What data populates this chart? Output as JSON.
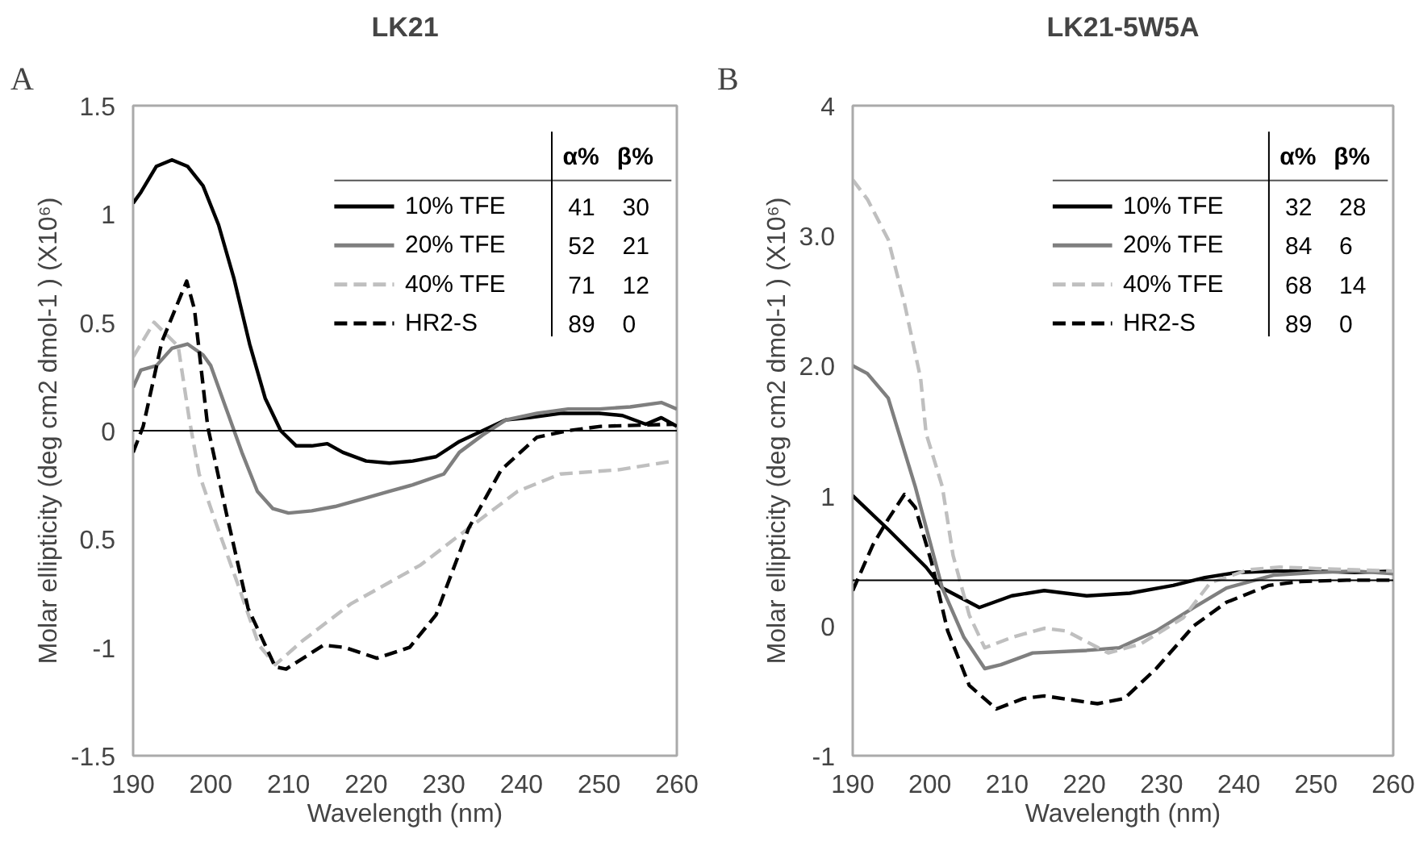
{
  "chart_data": [
    {
      "type": "line",
      "title": "LK21",
      "xlabel": "Wavelength (nm)",
      "ylabel": "Molar ellipticity (deg cm2 dmol-1 ) (X10⁶)",
      "legend": "top right",
      "xlim": [
        190,
        260
      ],
      "xticks": [
        190,
        200,
        210,
        220,
        230,
        240,
        250,
        260
      ],
      "ylim": [
        -1.5,
        1.5
      ],
      "yticks": [
        {
          "value": 1.5,
          "label": "1.5"
        },
        {
          "value": 1,
          "label": "1"
        },
        {
          "value": 0.5,
          "label": "0.5"
        },
        {
          "value": 0,
          "label": "0"
        },
        {
          "value": -0.5,
          "label": "0.5"
        },
        {
          "value": -1,
          "label": "-1"
        },
        {
          "value": -1.5,
          "label": "-1.5"
        }
      ],
      "ref_lines": [
        {
          "axis": "y",
          "value": 0,
          "color": "#000000"
        }
      ],
      "annotations": [
        "A",
        "α%",
        "β%",
        "41",
        "30",
        "52",
        "21",
        "71",
        "12",
        "89",
        "0"
      ],
      "series": [
        {
          "name": "10% TFE",
          "color": "#000000",
          "line_style": "solid",
          "x": [
            190,
            191,
            193,
            195,
            197,
            199,
            201,
            203,
            205,
            207,
            209,
            211,
            213,
            215,
            217,
            220,
            223,
            226,
            229,
            232,
            235,
            238,
            241,
            245,
            250,
            253,
            256,
            258,
            260
          ],
          "values": [
            1.05,
            1.1,
            1.22,
            1.25,
            1.22,
            1.13,
            0.95,
            0.7,
            0.4,
            0.15,
            0.0,
            -0.07,
            -0.07,
            -0.06,
            -0.1,
            -0.14,
            -0.15,
            -0.14,
            -0.12,
            -0.05,
            0.0,
            0.05,
            0.06,
            0.08,
            0.08,
            0.07,
            0.03,
            0.06,
            0.02
          ]
        },
        {
          "name": "20% TFE",
          "color": "#7f7f7f",
          "line_style": "solid",
          "x": [
            190,
            191,
            193,
            195,
            197,
            199,
            200,
            202,
            204,
            206,
            208,
            210,
            213,
            216,
            220,
            223,
            226,
            230,
            232,
            235,
            238,
            242,
            246,
            250,
            254,
            258,
            260
          ],
          "values": [
            0.2,
            0.28,
            0.3,
            0.38,
            0.4,
            0.35,
            0.3,
            0.1,
            -0.1,
            -0.28,
            -0.36,
            -0.38,
            -0.37,
            -0.35,
            -0.31,
            -0.28,
            -0.25,
            -0.2,
            -0.1,
            -0.02,
            0.05,
            0.08,
            0.1,
            0.1,
            0.11,
            0.13,
            0.1
          ]
        },
        {
          "name": "40% TFE",
          "color": "#bfbfbf",
          "line_style": "dashed",
          "x": [
            190,
            192.7,
            195.8,
            197.2,
            198.5,
            200.6,
            203.4,
            206.2,
            208.3,
            211.8,
            218,
            227,
            233.2,
            239.5,
            245,
            252.6,
            259.6
          ],
          "values": [
            0.34,
            0.5,
            0.39,
            0.06,
            -0.2,
            -0.42,
            -0.7,
            -0.99,
            -1.08,
            -0.97,
            -0.8,
            -0.62,
            -0.45,
            -0.28,
            -0.2,
            -0.18,
            -0.14
          ]
        },
        {
          "name": "HR2-S",
          "color": "#000000",
          "line_style": "dashed",
          "x": [
            190,
            191.3,
            193.7,
            196.9,
            197.9,
            199.6,
            202,
            204.8,
            208.3,
            209.7,
            214.5,
            217.2,
            221.4,
            225.6,
            229,
            233.2,
            237.4,
            242,
            246,
            250.2,
            259.6
          ],
          "values": [
            -0.1,
            0.02,
            0.41,
            0.69,
            0.56,
            0.02,
            -0.38,
            -0.82,
            -1.09,
            -1.1,
            -0.99,
            -1.0,
            -1.05,
            -1.0,
            -0.85,
            -0.45,
            -0.18,
            -0.03,
            0.0,
            0.02,
            0.03
          ]
        }
      ]
    },
    {
      "type": "line",
      "title": "LK21-5W5A",
      "xlabel": "Wavelength (nm)",
      "ylabel": "Molar ellipticity (deg cm2 dmol-1 ) (X10⁶)",
      "legend": "top right",
      "xlim": [
        190,
        260
      ],
      "xticks": [
        190,
        200,
        210,
        220,
        230,
        240,
        250,
        260
      ],
      "ylim": [
        -1,
        4
      ],
      "yticks": [
        {
          "value": 4,
          "label": "4"
        },
        {
          "value": 3,
          "label": "3.0"
        },
        {
          "value": 2,
          "label": "2.0"
        },
        {
          "value": 1,
          "label": "1"
        },
        {
          "value": 0,
          "label": "0"
        },
        {
          "value": -1,
          "label": "-1"
        }
      ],
      "ref_lines": [
        {
          "axis": "y",
          "value": 0.35,
          "color": "#000000"
        }
      ],
      "annotations": [
        "B",
        "α%",
        "β%",
        "32",
        "28",
        "84",
        "6",
        "68",
        "14",
        "89",
        "0"
      ],
      "series": [
        {
          "name": "10% TFE",
          "color": "#000000",
          "line_style": "solid",
          "x": [
            190,
            194.6,
            199.5,
            201.6,
            206.4,
            210.6,
            214.8,
            220.3,
            225.9,
            231.5,
            235.6,
            239.8,
            245,
            250,
            255,
            260
          ],
          "values": [
            1.0,
            0.74,
            0.45,
            0.29,
            0.14,
            0.23,
            0.27,
            0.23,
            0.25,
            0.31,
            0.37,
            0.41,
            0.42,
            0.42,
            0.41,
            0.42
          ]
        },
        {
          "name": "20% TFE",
          "color": "#7f7f7f",
          "line_style": "solid",
          "x": [
            190,
            191.9,
            194.6,
            198.1,
            201.6,
            204.4,
            207.1,
            209.2,
            213.3,
            220.3,
            224.5,
            229.3,
            234.2,
            238.4,
            244.6,
            250,
            255,
            260
          ],
          "values": [
            2.0,
            1.94,
            1.75,
            1.07,
            0.29,
            -0.09,
            -0.33,
            -0.3,
            -0.21,
            -0.19,
            -0.17,
            -0.04,
            0.14,
            0.29,
            0.39,
            0.41,
            0.42,
            0.4
          ]
        },
        {
          "name": "40% TFE",
          "color": "#bfbfbf",
          "line_style": "dashed",
          "x": [
            190,
            191.9,
            194.6,
            196.7,
            198.8,
            199.5,
            201.6,
            203,
            205.1,
            207.1,
            210.6,
            214.8,
            217.6,
            223.1,
            227.3,
            232.8,
            236.3,
            241.2,
            245.3,
            250,
            255,
            260
          ],
          "values": [
            3.43,
            3.28,
            2.97,
            2.48,
            1.9,
            1.48,
            1.07,
            0.54,
            0.08,
            -0.17,
            -0.09,
            -0.02,
            -0.04,
            -0.21,
            -0.14,
            0.06,
            0.33,
            0.43,
            0.45,
            0.44,
            0.43,
            0.42
          ]
        },
        {
          "name": "HR2-S",
          "color": "#000000",
          "line_style": "dashed",
          "x": [
            190,
            192.6,
            194.6,
            196.7,
            198.1,
            200.2,
            202.3,
            205.1,
            208.6,
            212.1,
            214.8,
            221.7,
            225.2,
            229.3,
            234.2,
            238.4,
            243.9,
            248,
            254,
            260
          ],
          "values": [
            0.27,
            0.62,
            0.82,
            1.01,
            0.91,
            0.49,
            -0.04,
            -0.46,
            -0.64,
            -0.56,
            -0.54,
            -0.6,
            -0.56,
            -0.33,
            0.0,
            0.18,
            0.31,
            0.34,
            0.35,
            0.35
          ]
        }
      ]
    }
  ]
}
